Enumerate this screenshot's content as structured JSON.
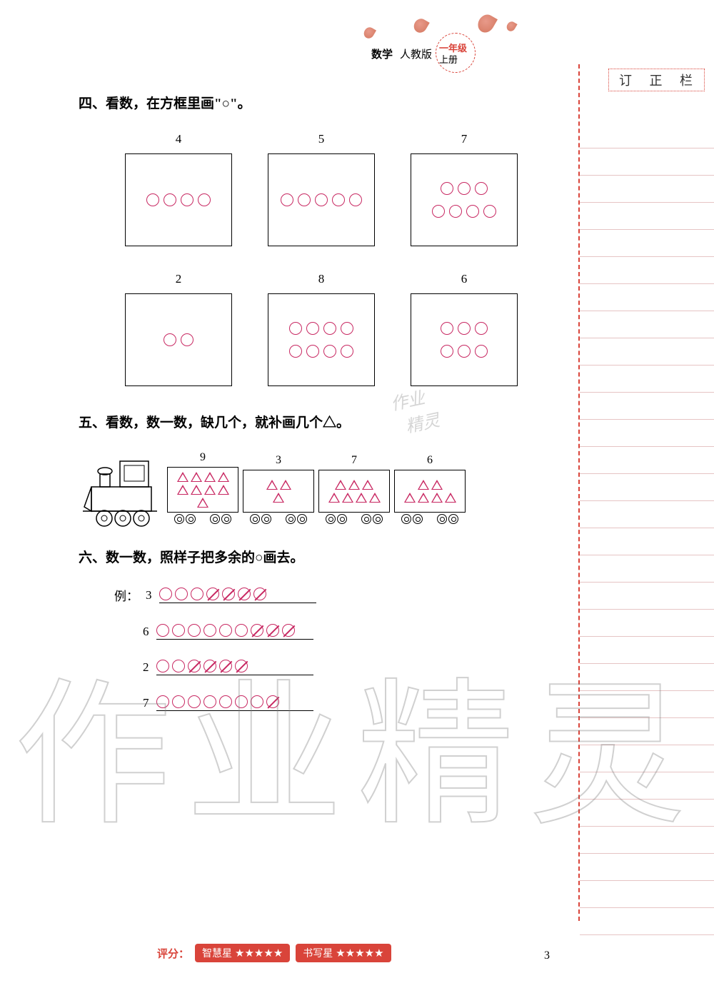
{
  "header": {
    "subject": "数学",
    "edition": "人教版",
    "grade_top": "一年级",
    "grade_bottom": "上册"
  },
  "correction_label": "订 正 栏",
  "q4": {
    "title": "四、看数，在方框里画\"○\"。",
    "row1": [
      {
        "label": "4",
        "rows": [
          [
            1,
            1,
            1,
            1
          ]
        ]
      },
      {
        "label": "5",
        "rows": [
          [
            1,
            1,
            1,
            1,
            1
          ]
        ]
      },
      {
        "label": "7",
        "rows": [
          [
            1,
            1,
            1
          ],
          [
            1,
            1,
            1,
            1
          ]
        ]
      }
    ],
    "row2": [
      {
        "label": "2",
        "rows": [
          [
            1,
            1
          ]
        ]
      },
      {
        "label": "8",
        "rows": [
          [
            1,
            1,
            1,
            1
          ],
          [
            1,
            1,
            1,
            1
          ]
        ]
      },
      {
        "label": "6",
        "rows": [
          [
            1,
            1,
            1
          ],
          [
            1,
            1,
            1
          ]
        ]
      }
    ]
  },
  "q5": {
    "title": "五、看数，数一数，缺几个，就补画几个△。",
    "cars": [
      {
        "label": "9",
        "rows": [
          [
            1,
            1,
            1,
            1
          ],
          [
            1,
            1,
            1,
            1
          ],
          [
            1
          ]
        ]
      },
      {
        "label": "3",
        "rows": [
          [
            1,
            1
          ],
          [
            1
          ]
        ]
      },
      {
        "label": "7",
        "rows": [
          [
            1,
            1,
            1
          ],
          [
            1,
            1,
            1,
            1
          ]
        ]
      },
      {
        "label": "6",
        "rows": [
          [
            1,
            1
          ],
          [
            1,
            1,
            1,
            1
          ]
        ]
      }
    ]
  },
  "q6": {
    "title": "六、数一数，照样子把多余的○画去。",
    "example_label": "例：",
    "example_num": "3",
    "example_circles": [
      0,
      0,
      0,
      1,
      1,
      1,
      1
    ],
    "rows": [
      {
        "num": "6",
        "circles": [
          0,
          0,
          0,
          0,
          0,
          0,
          1,
          1,
          1
        ]
      },
      {
        "num": "2",
        "circles": [
          0,
          0,
          1,
          1,
          1,
          1
        ]
      },
      {
        "num": "7",
        "circles": [
          0,
          0,
          0,
          0,
          0,
          0,
          0,
          1
        ]
      }
    ]
  },
  "watermark_large": "作业精灵",
  "watermark_small": "作业\n精灵",
  "footer": {
    "score_label": "评分：",
    "badge1": "智慧星",
    "badge2": "书写星",
    "stars": 5
  },
  "page_number": "3",
  "colors": {
    "accent": "#c82862",
    "red": "#d9443a",
    "ruled": "#e6c4c4"
  }
}
